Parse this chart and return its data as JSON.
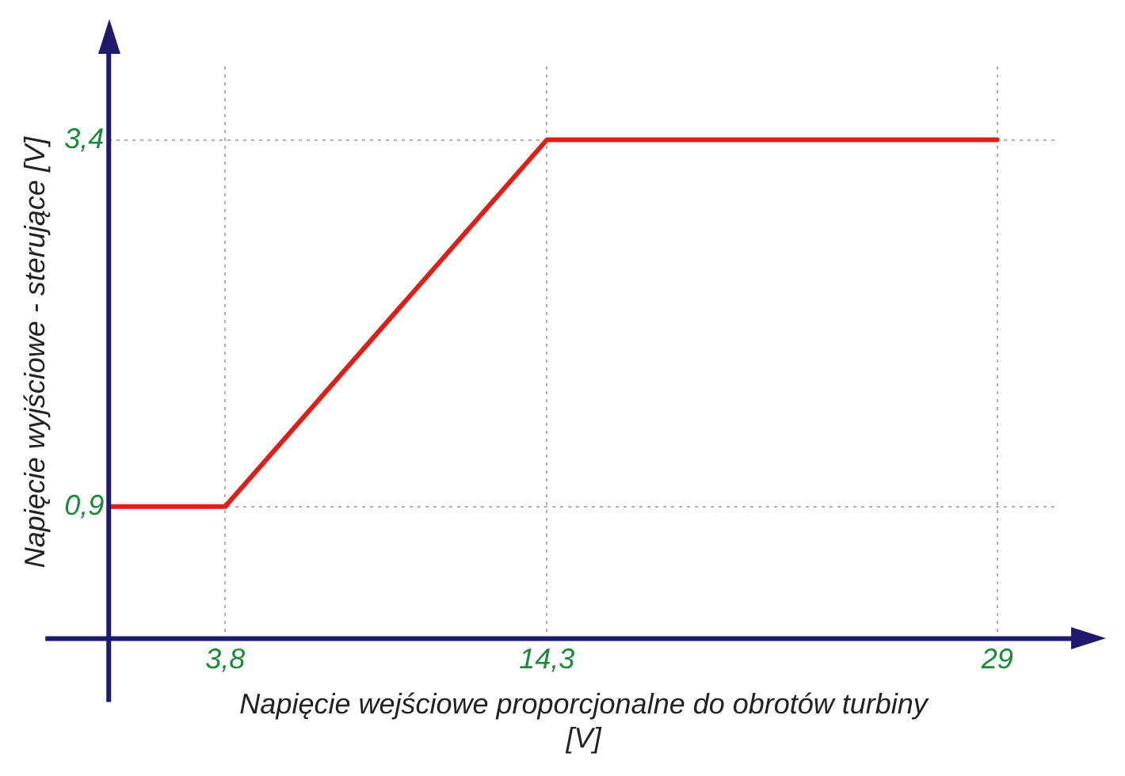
{
  "chart_data": {
    "type": "line",
    "xlabel": "Napięcie wejściowe proporcjonalne do obrotów turbiny [V]",
    "ylabel": "Napięcie wyjściowe - sterujące [V]",
    "x": [
      0,
      3.8,
      14.3,
      29
    ],
    "series": [
      {
        "color": "#dd1f1a",
        "values": [
          0.9,
          0.9,
          3.4,
          3.4
        ]
      }
    ],
    "xlim": [
      0,
      31
    ],
    "ylim": [
      0,
      3.9
    ],
    "xticks": [
      {
        "value": 3.8,
        "label": "3,8"
      },
      {
        "value": 14.3,
        "label": "14,3"
      },
      {
        "value": 29,
        "label": "29"
      }
    ],
    "yticks": [
      {
        "value": 0.9,
        "label": "0,9"
      },
      {
        "value": 3.4,
        "label": "3,4"
      }
    ],
    "grid": true,
    "legend": false,
    "marker": "none",
    "line_style": "solid"
  }
}
